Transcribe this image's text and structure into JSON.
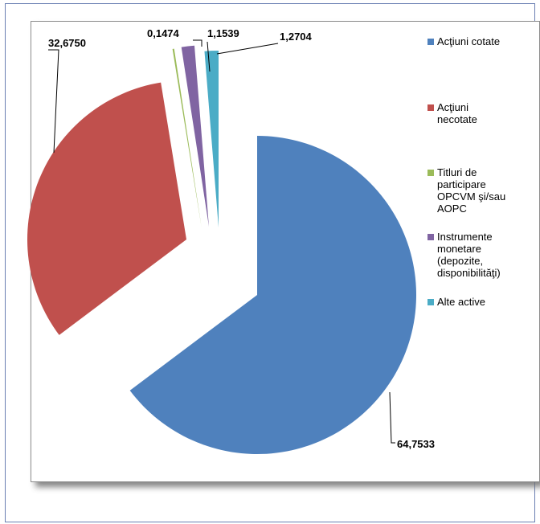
{
  "chart_data": {
    "type": "pie",
    "categories": [
      "Acţiuni cotate",
      "Acţiuni necotate",
      "Titluri de participare OPCVM şi/sau AOPC",
      "Instrumente monetare (depozite, disponibilităţi)",
      "Alte active"
    ],
    "legend_labels": [
      "Acţiuni cotate",
      "Acţiuni\nnecotate",
      "Titluri de\nparticipare\nOPCVM şi/sau\nAOPC",
      "Instrumente\nmonetare\n(depozite,\ndisponibilităţi)",
      "Alte active"
    ],
    "values": [
      64.7533,
      32.675,
      0.1474,
      1.1539,
      1.2704
    ],
    "data_labels": [
      "64,7533",
      "32,6750",
      "0,1474",
      "1,1539",
      "1,2704"
    ],
    "colors": [
      "#4f81bd",
      "#c0504d",
      "#9bbb59",
      "#8064a2",
      "#4bacc6"
    ],
    "exploded": true,
    "legend_position": "right"
  }
}
